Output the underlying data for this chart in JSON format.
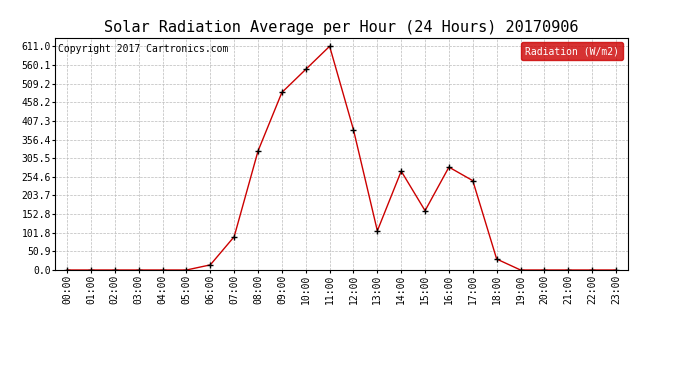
{
  "title": "Solar Radiation Average per Hour (24 Hours) 20170906",
  "copyright": "Copyright 2017 Cartronics.com",
  "legend_label": "Radiation (W/m2)",
  "hours": [
    "00:00",
    "01:00",
    "02:00",
    "03:00",
    "04:00",
    "05:00",
    "06:00",
    "07:00",
    "08:00",
    "09:00",
    "10:00",
    "11:00",
    "12:00",
    "13:00",
    "14:00",
    "15:00",
    "16:00",
    "17:00",
    "18:00",
    "19:00",
    "20:00",
    "21:00",
    "22:00",
    "23:00"
  ],
  "values": [
    0.0,
    0.0,
    0.0,
    0.0,
    0.0,
    0.0,
    14.0,
    91.0,
    325.0,
    485.0,
    548.0,
    611.0,
    383.0,
    107.0,
    270.0,
    162.0,
    281.0,
    244.0,
    30.0,
    0.0,
    0.0,
    0.0,
    0.0,
    0.0
  ],
  "yticks": [
    0.0,
    50.9,
    101.8,
    152.8,
    203.7,
    254.6,
    305.5,
    356.4,
    407.3,
    458.2,
    509.2,
    560.1,
    611.0
  ],
  "ymax": 635.0,
  "line_color": "#cc0000",
  "marker_color": "#000000",
  "legend_bg": "#cc0000",
  "legend_text_color": "#ffffff",
  "grid_color": "#bbbbbb",
  "bg_color": "#ffffff",
  "title_fontsize": 11,
  "copyright_fontsize": 7,
  "tick_fontsize": 7,
  "ytick_fontsize": 7
}
